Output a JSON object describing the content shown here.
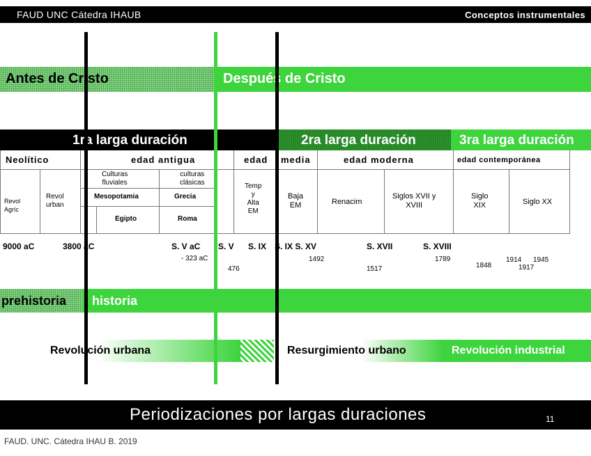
{
  "header": {
    "left": "FAUD  UNC      Cátedra IHAUB",
    "right": "Conceptos instrumentales"
  },
  "era_bar": {
    "before": "Antes de Cristo",
    "after": "Después de Cristo"
  },
  "durations": {
    "first": "1ra larga duración",
    "second": "2ra larga duración",
    "third": "3ra larga duración"
  },
  "ages": {
    "neolitico": "Neolítico",
    "antigua": "edad antigua",
    "media_a": "edad",
    "media_b": "media",
    "moderna": "edad moderna",
    "contemporanea": "edad contemporánea"
  },
  "cells": {
    "revol_agric": "Revol\nAgríc",
    "revol_urban": "Revol\nurban",
    "culturas_fluviales": "Culturas\nfluviales",
    "culturas_clasicas": "culturas\nclásicas",
    "mesopotamia": "Mesopotamia",
    "grecia": "Grecia",
    "egipto": "Egipto",
    "roma": "Roma",
    "temp_alta_em": "Temp\ny\nAlta\nEM",
    "baja_em": "Baja\nEM",
    "renacim": "Renacim",
    "siglos_xvii_xviii": "Siglos XVII y\nXVIII",
    "siglo_xix": "Siglo\nXIX",
    "siglo_xx": "Siglo XX"
  },
  "dates": {
    "d9000": "9000 aC",
    "d3800": "3800  aC",
    "sv_ac": "S. V aC",
    "sv": "S. V",
    "six": "S. IX",
    "six_sxv": "S. IX S. XV",
    "sxvii": "S. XVII",
    "sxviii": "S. XVIII",
    "d323": "- 323 aC",
    "d476": "476",
    "d1492": "1492",
    "d1517": "1517",
    "d1789": "1789",
    "d1848": "1848",
    "d1914": "1914",
    "d1945": "1945",
    "d1917": "1917"
  },
  "history_bar": {
    "prehistoria": "prehistoria",
    "historia": "historia"
  },
  "revolutions": {
    "urbana": "Revolución urbana",
    "resurgimiento": "Resurgimiento urbano",
    "industrial": "Revolución industrial"
  },
  "footer": {
    "title": "Periodizaciones por largas duraciones",
    "page": "11",
    "credit": "FAUD. UNC. Cátedra IHAU B. 2019"
  },
  "colors": {
    "green": "#3dd43d",
    "black": "#000000",
    "gray": "#777777"
  }
}
